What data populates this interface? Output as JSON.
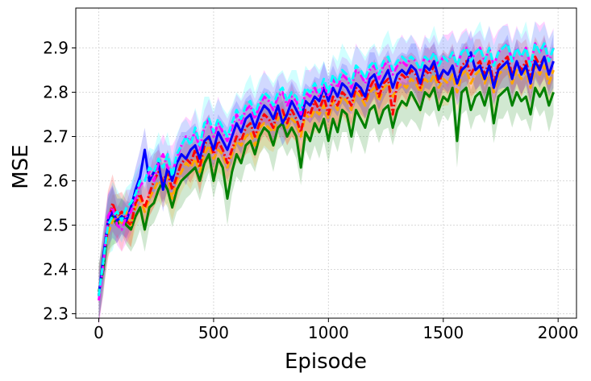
{
  "chart_data": {
    "type": "line",
    "title": "",
    "xlabel": "Episode",
    "ylabel": "MSE",
    "xlim": [
      -100,
      2080
    ],
    "ylim": [
      2.29,
      2.99
    ],
    "xticks": [
      0,
      500,
      1000,
      1500,
      2000
    ],
    "yticks": [
      2.3,
      2.4,
      2.5,
      2.6,
      2.7,
      2.8,
      2.9
    ],
    "grid": true,
    "legend": "none",
    "x": [
      0,
      20,
      40,
      60,
      80,
      100,
      120,
      140,
      160,
      180,
      200,
      220,
      240,
      260,
      280,
      300,
      320,
      340,
      360,
      380,
      400,
      420,
      440,
      460,
      480,
      500,
      520,
      540,
      560,
      580,
      600,
      620,
      640,
      660,
      680,
      700,
      720,
      740,
      760,
      780,
      800,
      820,
      840,
      860,
      880,
      900,
      920,
      940,
      960,
      980,
      1000,
      1020,
      1040,
      1060,
      1080,
      1100,
      1120,
      1140,
      1160,
      1180,
      1200,
      1220,
      1240,
      1260,
      1280,
      1300,
      1320,
      1340,
      1360,
      1380,
      1400,
      1420,
      1440,
      1460,
      1480,
      1500,
      1520,
      1540,
      1560,
      1580,
      1600,
      1620,
      1640,
      1660,
      1680,
      1700,
      1720,
      1740,
      1760,
      1780,
      1800,
      1820,
      1840,
      1860,
      1880,
      1900,
      1920,
      1940,
      1960,
      1980
    ],
    "series": [
      {
        "color": "#008000",
        "dash": "solid",
        "values": [
          2.35,
          2.4,
          2.5,
          2.52,
          2.5,
          2.52,
          2.5,
          2.49,
          2.52,
          2.54,
          2.49,
          2.54,
          2.55,
          2.58,
          2.6,
          2.58,
          2.54,
          2.58,
          2.6,
          2.61,
          2.62,
          2.63,
          2.6,
          2.64,
          2.66,
          2.6,
          2.65,
          2.63,
          2.56,
          2.62,
          2.66,
          2.64,
          2.68,
          2.69,
          2.66,
          2.7,
          2.72,
          2.71,
          2.68,
          2.72,
          2.73,
          2.7,
          2.72,
          2.7,
          2.63,
          2.71,
          2.69,
          2.73,
          2.71,
          2.74,
          2.69,
          2.74,
          2.71,
          2.76,
          2.75,
          2.7,
          2.76,
          2.74,
          2.72,
          2.76,
          2.77,
          2.73,
          2.76,
          2.77,
          2.72,
          2.76,
          2.78,
          2.77,
          2.8,
          2.78,
          2.76,
          2.8,
          2.79,
          2.81,
          2.76,
          2.79,
          2.78,
          2.81,
          2.69,
          2.8,
          2.81,
          2.76,
          2.79,
          2.8,
          2.77,
          2.81,
          2.73,
          2.79,
          2.8,
          2.81,
          2.77,
          2.8,
          2.78,
          2.79,
          2.75,
          2.81,
          2.79,
          2.81,
          2.77,
          2.8
        ]
      },
      {
        "color": "#ffa500",
        "dash": "dashed",
        "values": [
          2.34,
          2.43,
          2.48,
          2.51,
          2.52,
          2.5,
          2.53,
          2.5,
          2.54,
          2.56,
          2.53,
          2.56,
          2.58,
          2.6,
          2.59,
          2.61,
          2.56,
          2.6,
          2.62,
          2.64,
          2.63,
          2.65,
          2.62,
          2.66,
          2.68,
          2.65,
          2.67,
          2.66,
          2.63,
          2.66,
          2.69,
          2.68,
          2.7,
          2.71,
          2.68,
          2.72,
          2.73,
          2.72,
          2.71,
          2.74,
          2.75,
          2.72,
          2.74,
          2.73,
          2.7,
          2.75,
          2.74,
          2.76,
          2.75,
          2.77,
          2.74,
          2.78,
          2.76,
          2.79,
          2.78,
          2.76,
          2.8,
          2.79,
          2.77,
          2.8,
          2.81,
          2.78,
          2.81,
          2.82,
          2.79,
          2.81,
          2.82,
          2.81,
          2.83,
          2.82,
          2.8,
          2.83,
          2.82,
          2.84,
          2.81,
          2.83,
          2.82,
          2.84,
          2.8,
          2.84,
          2.85,
          2.82,
          2.84,
          2.85,
          2.82,
          2.85,
          2.8,
          2.84,
          2.85,
          2.86,
          2.82,
          2.85,
          2.83,
          2.85,
          2.81,
          2.86,
          2.84,
          2.86,
          2.82,
          2.85
        ]
      },
      {
        "color": "#ff0000",
        "dash": "dashdot",
        "values": [
          2.34,
          2.42,
          2.5,
          2.55,
          2.52,
          2.53,
          2.51,
          2.5,
          2.55,
          2.57,
          2.54,
          2.57,
          2.6,
          2.62,
          2.6,
          2.62,
          2.58,
          2.61,
          2.64,
          2.65,
          2.64,
          2.67,
          2.63,
          2.68,
          2.7,
          2.66,
          2.69,
          2.67,
          2.64,
          2.67,
          2.7,
          2.69,
          2.72,
          2.73,
          2.7,
          2.73,
          2.75,
          2.74,
          2.72,
          2.76,
          2.76,
          2.73,
          2.76,
          2.74,
          2.71,
          2.76,
          2.75,
          2.78,
          2.76,
          2.79,
          2.75,
          2.79,
          2.77,
          2.8,
          2.79,
          2.77,
          2.81,
          2.8,
          2.78,
          2.81,
          2.83,
          2.79,
          2.82,
          2.83,
          2.75,
          2.82,
          2.84,
          2.83,
          2.85,
          2.84,
          2.81,
          2.85,
          2.84,
          2.86,
          2.82,
          2.85,
          2.84,
          2.86,
          2.82,
          2.86,
          2.87,
          2.84,
          2.86,
          2.87,
          2.84,
          2.87,
          2.82,
          2.86,
          2.87,
          2.88,
          2.84,
          2.87,
          2.85,
          2.87,
          2.83,
          2.88,
          2.86,
          2.88,
          2.84,
          2.87
        ]
      },
      {
        "color": "#0000ff",
        "dash": "solid",
        "values": [
          2.34,
          2.43,
          2.51,
          2.53,
          2.51,
          2.52,
          2.51,
          2.54,
          2.58,
          2.61,
          2.67,
          2.6,
          2.62,
          2.64,
          2.58,
          2.63,
          2.6,
          2.64,
          2.66,
          2.65,
          2.67,
          2.68,
          2.65,
          2.69,
          2.7,
          2.67,
          2.71,
          2.69,
          2.67,
          2.7,
          2.73,
          2.71,
          2.74,
          2.75,
          2.72,
          2.75,
          2.77,
          2.76,
          2.74,
          2.77,
          2.73,
          2.75,
          2.78,
          2.76,
          2.74,
          2.78,
          2.77,
          2.79,
          2.78,
          2.81,
          2.78,
          2.81,
          2.79,
          2.82,
          2.81,
          2.79,
          2.82,
          2.81,
          2.79,
          2.83,
          2.84,
          2.81,
          2.83,
          2.85,
          2.81,
          2.84,
          2.85,
          2.84,
          2.86,
          2.85,
          2.82,
          2.86,
          2.85,
          2.87,
          2.83,
          2.85,
          2.84,
          2.86,
          2.82,
          2.85,
          2.86,
          2.89,
          2.85,
          2.86,
          2.83,
          2.86,
          2.81,
          2.85,
          2.86,
          2.87,
          2.83,
          2.87,
          2.84,
          2.86,
          2.82,
          2.87,
          2.85,
          2.88,
          2.84,
          2.87
        ]
      },
      {
        "color": "#ff00ff",
        "dash": "dashdot",
        "values": [
          2.33,
          2.41,
          2.52,
          2.54,
          2.5,
          2.49,
          2.52,
          2.53,
          2.56,
          2.59,
          2.6,
          2.62,
          2.6,
          2.64,
          2.66,
          2.63,
          2.62,
          2.65,
          2.68,
          2.7,
          2.69,
          2.71,
          2.67,
          2.72,
          2.74,
          2.7,
          2.73,
          2.71,
          2.69,
          2.72,
          2.75,
          2.73,
          2.76,
          2.77,
          2.74,
          2.77,
          2.79,
          2.78,
          2.76,
          2.79,
          2.8,
          2.77,
          2.79,
          2.78,
          2.75,
          2.8,
          2.79,
          2.81,
          2.79,
          2.82,
          2.79,
          2.83,
          2.81,
          2.84,
          2.83,
          2.81,
          2.85,
          2.84,
          2.82,
          2.85,
          2.86,
          2.83,
          2.86,
          2.87,
          2.84,
          2.86,
          2.87,
          2.86,
          2.88,
          2.87,
          2.85,
          2.88,
          2.87,
          2.89,
          2.86,
          2.88,
          2.87,
          2.89,
          2.86,
          2.89,
          2.9,
          2.87,
          2.89,
          2.9,
          2.87,
          2.9,
          2.86,
          2.89,
          2.9,
          2.91,
          2.87,
          2.9,
          2.88,
          2.9,
          2.86,
          2.91,
          2.89,
          2.91,
          2.87,
          2.9
        ]
      },
      {
        "color": "#00ffff",
        "dash": "dashed",
        "values": [
          2.34,
          2.42,
          2.5,
          2.52,
          2.53,
          2.51,
          2.54,
          2.55,
          2.57,
          2.6,
          2.6,
          2.63,
          2.62,
          2.65,
          2.63,
          2.66,
          2.61,
          2.66,
          2.68,
          2.7,
          2.68,
          2.72,
          2.68,
          2.73,
          2.74,
          2.71,
          2.74,
          2.72,
          2.7,
          2.73,
          2.76,
          2.74,
          2.77,
          2.78,
          2.75,
          2.78,
          2.8,
          2.79,
          2.77,
          2.8,
          2.81,
          2.78,
          2.8,
          2.79,
          2.76,
          2.81,
          2.8,
          2.82,
          2.8,
          2.83,
          2.8,
          2.84,
          2.82,
          2.85,
          2.84,
          2.82,
          2.86,
          2.85,
          2.83,
          2.86,
          2.87,
          2.84,
          2.87,
          2.88,
          2.85,
          2.87,
          2.88,
          2.87,
          2.88,
          2.87,
          2.85,
          2.88,
          2.87,
          2.89,
          2.86,
          2.88,
          2.87,
          2.89,
          2.86,
          2.89,
          2.9,
          2.87,
          2.89,
          2.9,
          2.87,
          2.9,
          2.86,
          2.89,
          2.9,
          2.91,
          2.87,
          2.9,
          2.88,
          2.9,
          2.86,
          2.91,
          2.89,
          2.91,
          2.87,
          2.9
        ]
      }
    ],
    "band_halfwidth": [
      0.05,
      0.045,
      0.045,
      0.05,
      0.04,
      0.04,
      0.045,
      0.05,
      0.06,
      0.05
    ]
  }
}
